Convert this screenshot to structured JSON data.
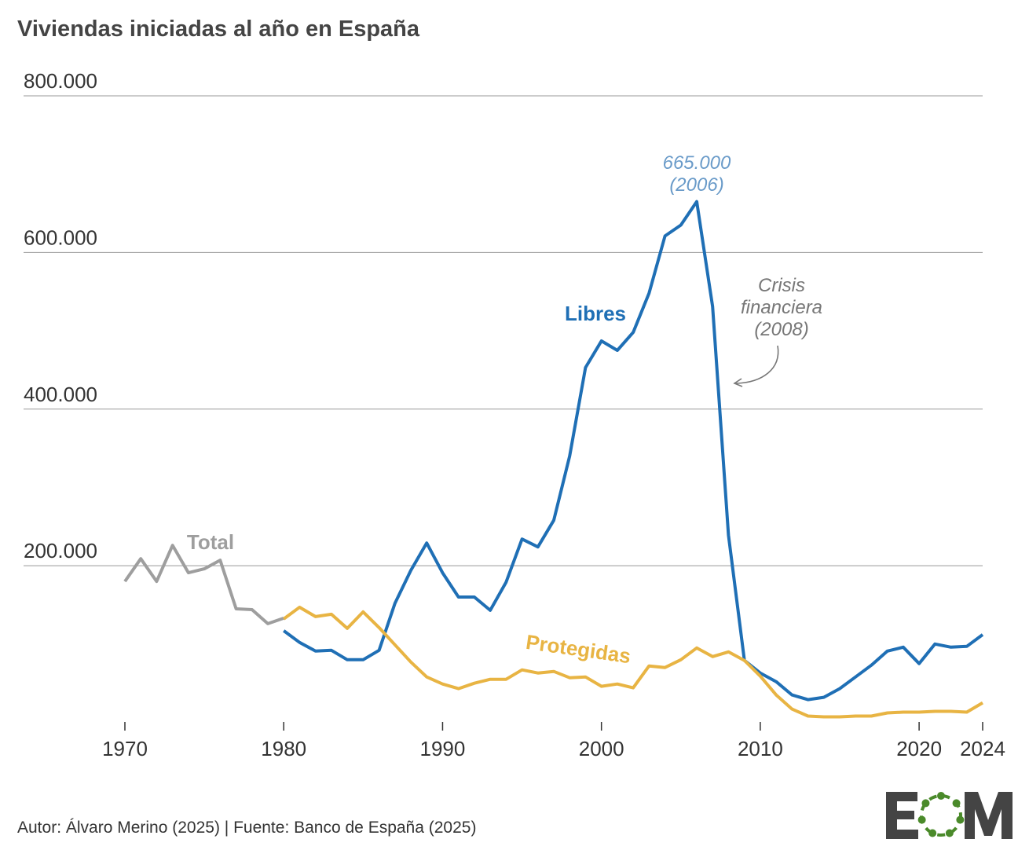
{
  "chart_data": {
    "type": "line",
    "title": "Viviendas iniciadas al año en España",
    "xlabel": "",
    "ylabel": "",
    "ylim": [
      0,
      800000
    ],
    "xlim": [
      1970,
      2024
    ],
    "grid": "horizontal",
    "y_ticks": [
      {
        "value": 200000,
        "label": "200.000"
      },
      {
        "value": 400000,
        "label": "400.000"
      },
      {
        "value": 600000,
        "label": "600.000"
      },
      {
        "value": 800000,
        "label": "800.000"
      }
    ],
    "x_ticks": [
      {
        "value": 1970,
        "label": "1970"
      },
      {
        "value": 1980,
        "label": "1980"
      },
      {
        "value": 1990,
        "label": "1990"
      },
      {
        "value": 2000,
        "label": "2000"
      },
      {
        "value": 2010,
        "label": "2010"
      },
      {
        "value": 2020,
        "label": "2020"
      },
      {
        "value": 2024,
        "label": "2024"
      }
    ],
    "series": [
      {
        "name": "Total",
        "color": "#9e9e9e",
        "x_start": 1970,
        "values": [
          180000,
          209000,
          180000,
          226000,
          191000,
          196000,
          207000,
          145000,
          144000,
          126000,
          133000
        ]
      },
      {
        "name": "Libres",
        "color": "#1f6fb5",
        "x_start": 1980,
        "values": [
          117000,
          102000,
          91000,
          92000,
          80000,
          80000,
          92000,
          152000,
          194000,
          229000,
          191000,
          160000,
          160000,
          143000,
          179000,
          234000,
          224000,
          258000,
          340000,
          453000,
          487000,
          475000,
          498000,
          548000,
          621000,
          635000,
          665000,
          531000,
          239000,
          79000,
          63000,
          52000,
          35000,
          29000,
          32000,
          43000,
          58000,
          73000,
          91000,
          96000,
          75000,
          100000,
          96000,
          97000,
          112000
        ]
      },
      {
        "name": "Protegidas",
        "color": "#e8b443",
        "x_start": 1980,
        "values": [
          132000,
          147000,
          135000,
          138000,
          120000,
          141000,
          121000,
          99000,
          77000,
          58000,
          49000,
          43000,
          50000,
          55000,
          55000,
          67000,
          63000,
          65000,
          57000,
          58000,
          46000,
          49000,
          44000,
          72000,
          70000,
          80000,
          95000,
          84000,
          90000,
          79000,
          59000,
          35000,
          17000,
          8000,
          7000,
          7000,
          8000,
          8000,
          12000,
          13000,
          13000,
          14000,
          14000,
          13000,
          25000
        ]
      }
    ],
    "annotations": {
      "peak_value": "665.000",
      "peak_year": "(2006)",
      "crisis_line1": "Crisis",
      "crisis_line2": "financiera",
      "crisis_line3": "(2008)"
    },
    "annotation_color": "#6a9bc9"
  },
  "footer": "Autor: Álvaro Merino (2025) | Fuente: Banco de España (2025)",
  "logo": {
    "text": "EOM",
    "letter_color": "#444444",
    "ring_color": "#4a8a2a"
  }
}
